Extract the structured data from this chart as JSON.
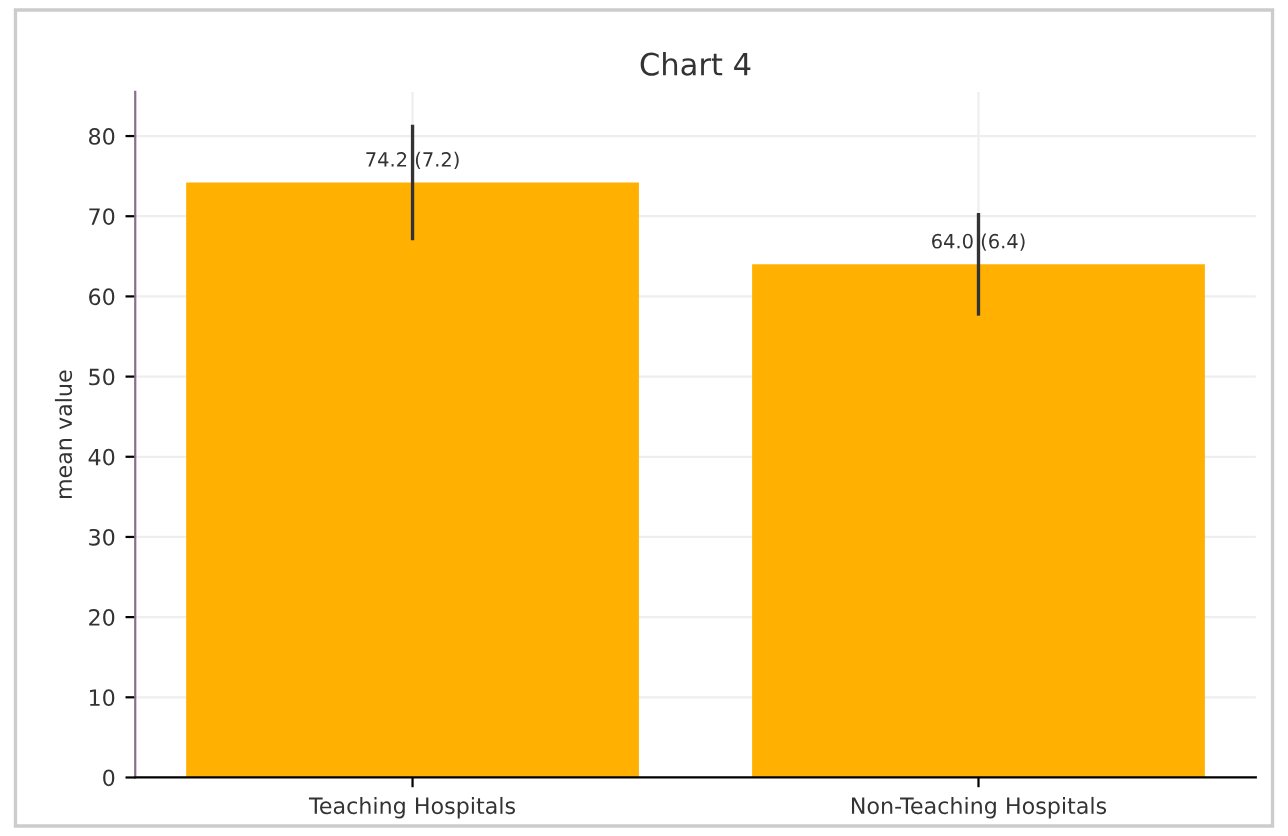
{
  "chart_data": {
    "type": "bar",
    "title": "Chart 4",
    "ylabel": "mean value",
    "categories": [
      "Teaching Hospitals",
      "Non-Teaching Hospitals"
    ],
    "values": [
      74.2,
      64.0
    ],
    "errors": [
      7.2,
      6.4
    ],
    "color": "#ffb000",
    "value_labels": [
      "74.2 (7.2)",
      "64.0 (6.4)"
    ],
    "ylim": [
      0,
      85.5
    ],
    "yticks": [
      0,
      10,
      20,
      30,
      40,
      50,
      60,
      70,
      80
    ],
    "grid": true
  }
}
